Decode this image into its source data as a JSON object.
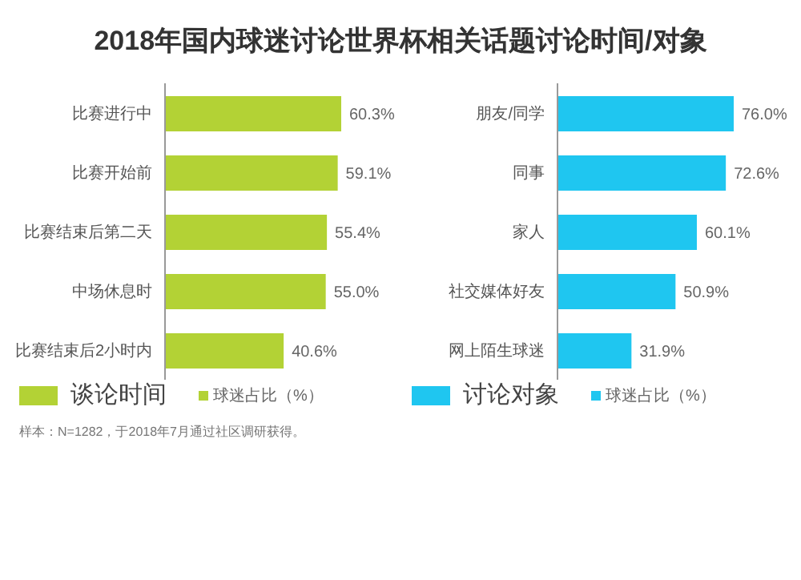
{
  "chart_data": [
    {
      "type": "bar",
      "orientation": "horizontal",
      "title": "2018年国内球迷讨论世界杯相关话题讨论时间/对象",
      "subtitle": "谈论时间",
      "categories": [
        "比赛进行中",
        "比赛开始前",
        "比赛结束后第二天",
        "中场休息时",
        "比赛结束后2小时内"
      ],
      "series": [
        {
          "name": "球迷占比（%）",
          "color": "#b3d235",
          "values": [
            60.3,
            59.1,
            55.4,
            55.0,
            40.6
          ],
          "value_labels": [
            "60.3%",
            "59.1%",
            "55.4%",
            "55.0%",
            "40.6%"
          ]
        }
      ],
      "legend": "bottom",
      "annotations": [
        "样本：N=1282，于2018年7月通过社区调研获得。"
      ]
    },
    {
      "type": "bar",
      "orientation": "horizontal",
      "subtitle": "讨论对象",
      "categories": [
        "朋友/同学",
        "同事",
        "家人",
        "社交媒体好友",
        "网上陌生球迷"
      ],
      "series": [
        {
          "name": "球迷占比（%）",
          "color": "#1fc6f0",
          "values": [
            76.0,
            72.6,
            60.1,
            50.9,
            31.9
          ],
          "value_labels": [
            "76.0%",
            "72.6%",
            "60.1%",
            "50.9%",
            "31.9%"
          ]
        }
      ],
      "legend": "bottom"
    }
  ]
}
